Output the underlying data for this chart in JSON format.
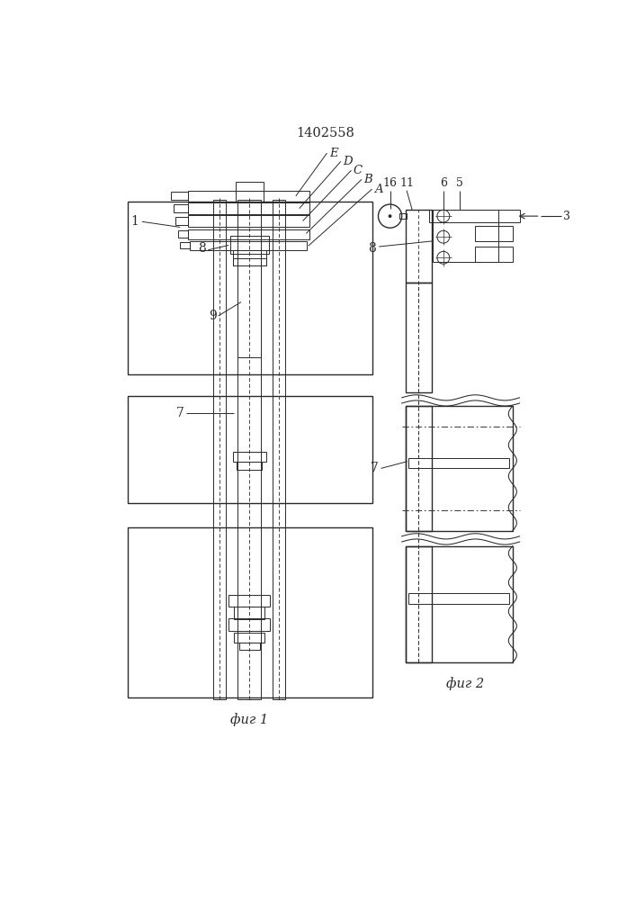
{
  "title": "1402558",
  "fig1_label": "фиг 1",
  "fig2_label": "фиг 2",
  "line_color": "#2a2a2a",
  "lw_main": 1.0,
  "lw_thin": 0.7,
  "lw_dash": 0.6
}
